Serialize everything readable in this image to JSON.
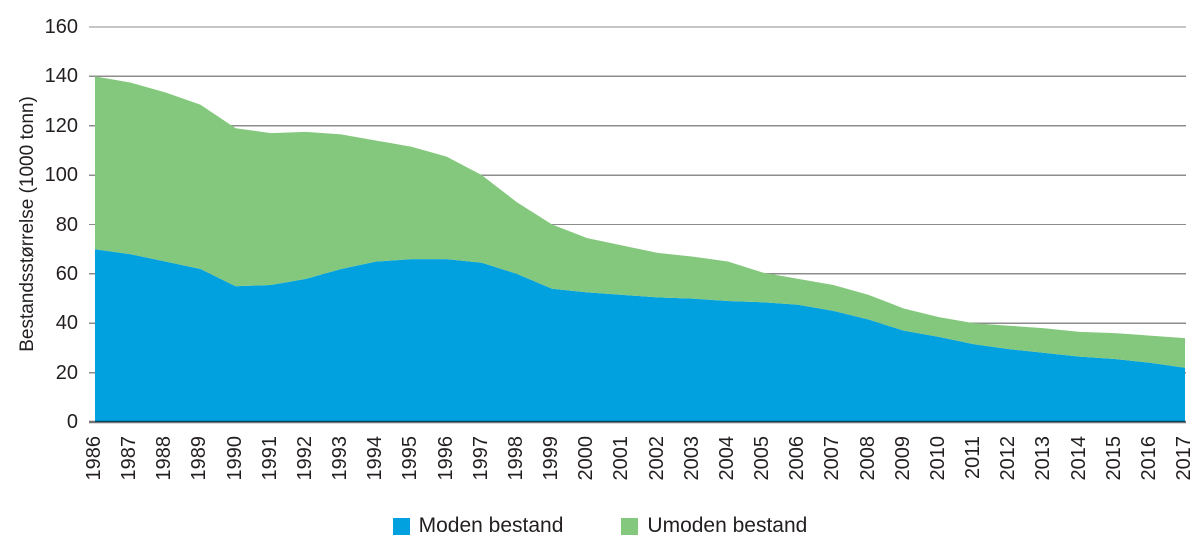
{
  "chart_data": {
    "type": "area",
    "stacked": true,
    "title": "",
    "xlabel": "",
    "ylabel": "Bestandsstørrelse (1000 tonn)",
    "ylim": [
      0,
      160
    ],
    "yticks": [
      0,
      20,
      40,
      60,
      80,
      100,
      120,
      140,
      160
    ],
    "grid": "horizontal",
    "legend_position": "bottom-center",
    "x": [
      1986,
      1987,
      1988,
      1989,
      1990,
      1991,
      1992,
      1993,
      1994,
      1995,
      1996,
      1997,
      1998,
      1999,
      2000,
      2001,
      2002,
      2003,
      2004,
      2005,
      2006,
      2007,
      2008,
      2009,
      2010,
      2011,
      2012,
      2013,
      2014,
      2015,
      2016,
      2017
    ],
    "series": [
      {
        "name": "Moden bestand",
        "color": "#00a1de",
        "values": [
          70,
          68,
          65,
          62,
          55,
          55.5,
          58,
          62,
          65,
          66,
          66,
          64.5,
          60,
          54,
          52.5,
          51.5,
          50.5,
          50,
          49,
          48.5,
          47.5,
          45,
          41.5,
          37,
          34.5,
          31.5,
          29.5,
          28,
          26.5,
          25.5,
          24,
          22
        ]
      },
      {
        "name": "Umoden bestand",
        "color": "#84c87d",
        "values": [
          70,
          69.5,
          68.5,
          66.5,
          64,
          61.5,
          59.5,
          54.5,
          49,
          45.5,
          41.5,
          35.5,
          29,
          26,
          22,
          20,
          18,
          17,
          16,
          12,
          10.5,
          10.5,
          10,
          9,
          8,
          8.5,
          9.5,
          10,
          10,
          10.5,
          11,
          12
        ]
      }
    ],
    "totals": [
      140,
      137.5,
      133.5,
      128.5,
      119,
      117,
      117.5,
      116.5,
      114,
      111.5,
      107.5,
      100,
      89,
      80,
      74.5,
      71.5,
      68.5,
      67,
      65,
      60.5,
      58,
      55.5,
      51.5,
      46,
      42.5,
      40,
      39,
      38,
      36.5,
      36,
      35,
      34
    ],
    "gridline_color": "#8c8c8c",
    "axis_line_color": "rgba(0,0,0,0.55)",
    "text_color": "#231f20"
  }
}
